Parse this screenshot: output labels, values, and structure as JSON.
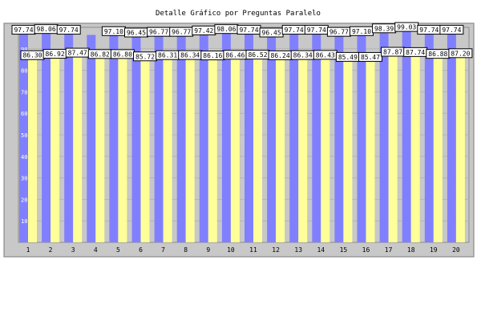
{
  "chart_data": {
    "type": "bar",
    "title": "Detalle Gráfico por Preguntas Paralelo",
    "xlabel": "",
    "ylabel": "",
    "ylim": [
      0,
      100
    ],
    "yticks": [
      10,
      20,
      30,
      40,
      50,
      60,
      70,
      80,
      90
    ],
    "grid": true,
    "categories": [
      "1",
      "2",
      "3",
      "4",
      "5",
      "6",
      "7",
      "8",
      "9",
      "10",
      "11",
      "12",
      "13",
      "14",
      "15",
      "16",
      "17",
      "18",
      "19",
      "20"
    ],
    "series": [
      {
        "color": "#8080ff",
        "values": [
          97.74,
          98.06,
          97.74,
          96.45,
          97.1,
          96.45,
          96.77,
          96.77,
          97.42,
          98.06,
          97.74,
          96.45,
          97.74,
          97.74,
          96.77,
          97.1,
          98.39,
          99.03,
          97.74,
          97.74
        ],
        "labels": [
          "97.74",
          "98.06",
          "97.74",
          "",
          "97.10",
          "96.45",
          "96.77",
          "96.77",
          "97.42",
          "98.06",
          "97.74",
          "96.45",
          "97.74",
          "97.74",
          "96.77",
          "97.10",
          "98.39",
          "99.03",
          "97.74",
          "97.74"
        ]
      },
      {
        "color": "#ffff99",
        "values": [
          86.3,
          86.92,
          87.47,
          86.82,
          86.8,
          85.72,
          86.31,
          86.34,
          86.16,
          86.46,
          86.52,
          86.24,
          86.34,
          86.43,
          85.49,
          85.47,
          87.87,
          87.74,
          86.88,
          87.2
        ],
        "labels": [
          "86.30",
          "86.92",
          "87.47",
          "86.82",
          "86.80",
          "85.72",
          "86.31",
          "86.34",
          "86.16",
          "86.46",
          "86.52",
          "86.24",
          "86.34",
          "86.43",
          "85.49",
          "85.47",
          "87.87",
          "87.74",
          "86.88",
          "87.20"
        ]
      }
    ]
  }
}
